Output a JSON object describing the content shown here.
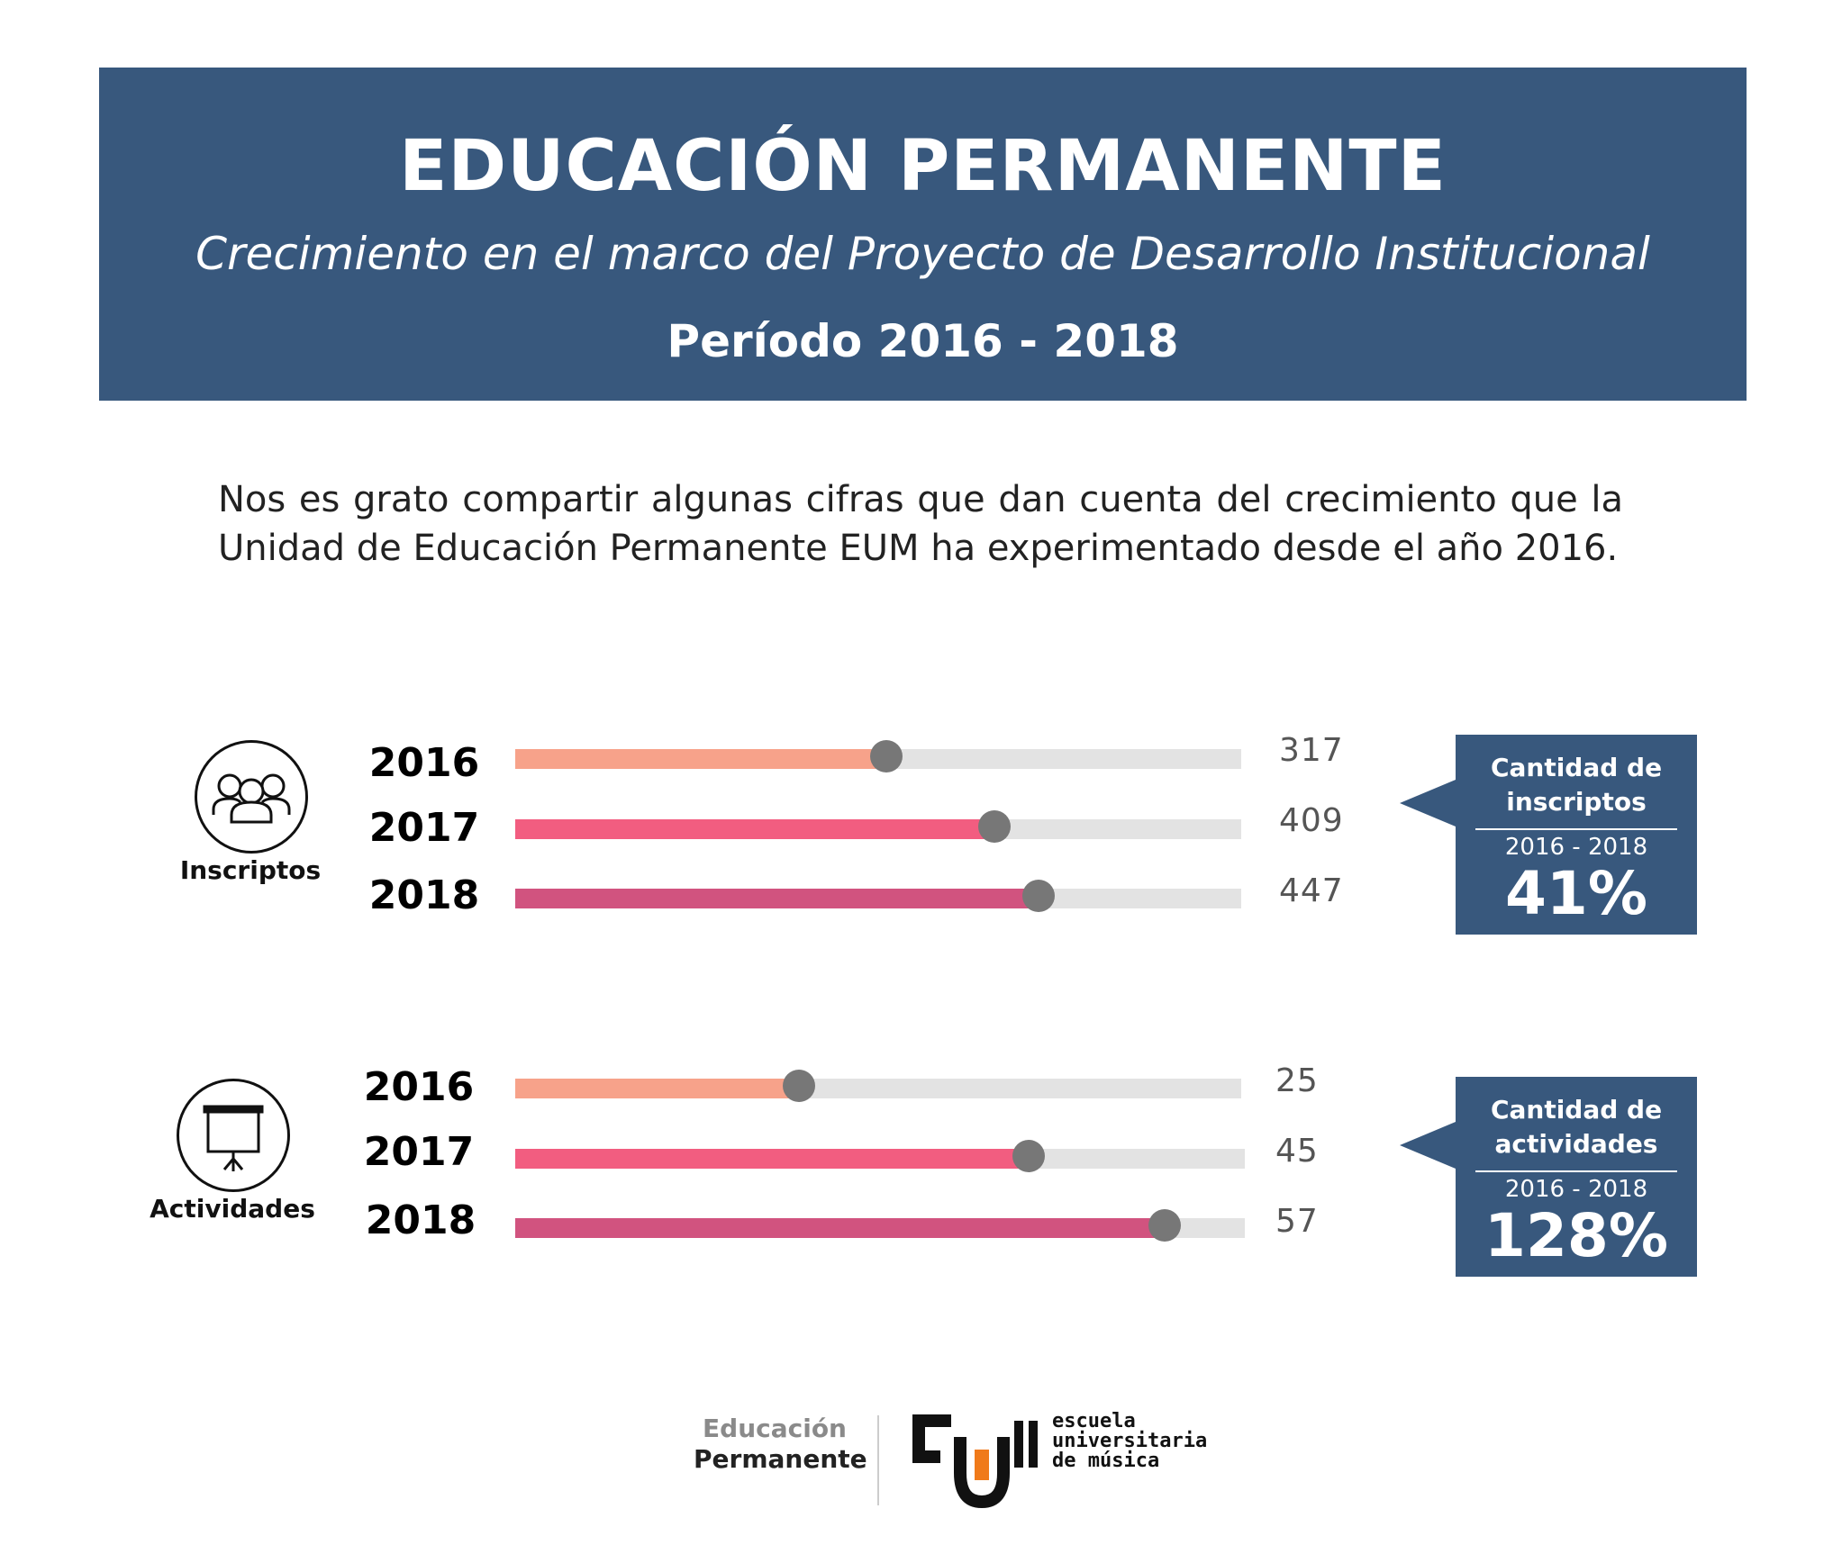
{
  "header": {
    "title": "EDUCACIÓN PERMANENTE",
    "subtitle": "Crecimiento en el marco del Proyecto de Desarrollo Institucional",
    "period": "Período 2016 - 2018"
  },
  "intro": "Nos es grato compartir algunas cifras que dan cuenta del crecimiento que la Unidad de Educación Permanente EUM ha experimentado desde el año 2016.",
  "colors": {
    "header_bg": "#38587d",
    "bar_2016": "#f7a28a",
    "bar_2017": "#f25d80",
    "bar_2018": "#d1537f",
    "track": "#e3e3e3",
    "knob": "#777777"
  },
  "chart_data": [
    {
      "type": "bar",
      "orientation": "horizontal",
      "label": "Inscriptos",
      "icon": "group-icon",
      "categories": [
        "2016",
        "2017",
        "2018"
      ],
      "values": [
        317,
        409,
        447
      ],
      "value_labels": [
        "317",
        "409",
        "447"
      ],
      "xlim": [
        0,
        620
      ],
      "callout": {
        "title_line1": "Cantidad de",
        "title_line2": "inscriptos",
        "period": "2016 - 2018",
        "percent": "41%"
      }
    },
    {
      "type": "bar",
      "orientation": "horizontal",
      "label": "Actividades",
      "icon": "projector-screen-icon",
      "categories": [
        "2016",
        "2017",
        "2018"
      ],
      "values": [
        25,
        45,
        57
      ],
      "value_labels": [
        "25",
        "45",
        "57"
      ],
      "xlim": [
        0,
        64
      ],
      "callout": {
        "title_line1": "Cantidad de",
        "title_line2": "actividades",
        "period": "2016 - 2018",
        "percent": "128%"
      }
    }
  ],
  "footer": {
    "brand_line1": "Educación",
    "brand_line2": "Permanente",
    "school_line1": "escuela",
    "school_line2": "universitaria",
    "school_line3": "de música"
  }
}
